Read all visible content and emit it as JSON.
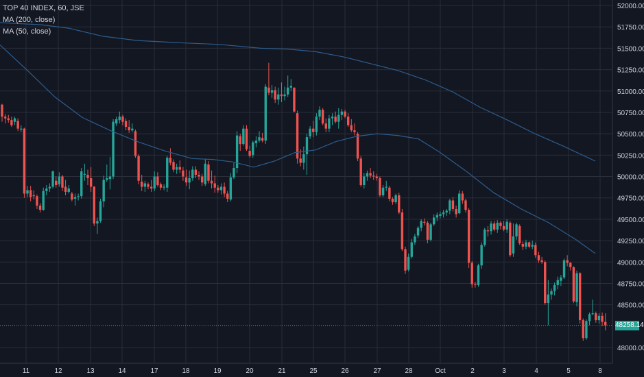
{
  "chart_data": {
    "type": "candlestick",
    "legend": [
      "TOP 40 INDEX, 60, JSE",
      "MA (200, close)",
      "MA (50, close)"
    ],
    "x_ticks": [
      "11",
      "12",
      "13",
      "14",
      "17",
      "18",
      "19",
      "20",
      "21",
      "25",
      "26",
      "27",
      "28",
      "Oct",
      "2",
      "3",
      "4",
      "5",
      "8"
    ],
    "y_ticks": [
      "52000.00",
      "51750.00",
      "51500.00",
      "51250.00",
      "51000.00",
      "50750.00",
      "50500.00",
      "50250.00",
      "50000.00",
      "49750.00",
      "49500.00",
      "49250.00",
      "49000.00",
      "48750.00",
      "48500.00",
      "48000.00"
    ],
    "ylim": [
      47970,
      52010
    ],
    "last_price": 48258.14,
    "last_price_label": "48258.14",
    "colors": {
      "background": "#131722",
      "grid": "#2a2e39",
      "up": "#26a69a",
      "down": "#ef5350",
      "ma": "#2d5d8e",
      "price_line": "#26a69a",
      "text": "#d1d4dc"
    },
    "candles": [
      [
        50840,
        50850,
        50640,
        50700
      ],
      [
        50700,
        50730,
        50620,
        50680
      ],
      [
        50680,
        50720,
        50630,
        50660
      ],
      [
        50660,
        50700,
        50580,
        50600
      ],
      [
        50640,
        50700,
        50600,
        50680
      ],
      [
        50650,
        50680,
        50530,
        50560
      ],
      [
        50550,
        50600,
        50520,
        50560
      ],
      [
        50560,
        50570,
        49750,
        49800
      ],
      [
        49800,
        49890,
        49760,
        49840
      ],
      [
        49840,
        49890,
        49710,
        49760
      ],
      [
        49780,
        49840,
        49730,
        49770
      ],
      [
        49770,
        49790,
        49620,
        49660
      ],
      [
        49660,
        49690,
        49580,
        49610
      ],
      [
        49610,
        49870,
        49600,
        49830
      ],
      [
        49830,
        49900,
        49780,
        49860
      ],
      [
        49860,
        49920,
        49820,
        49880
      ],
      [
        49880,
        50070,
        49860,
        50060
      ],
      [
        49950,
        50000,
        49870,
        49900
      ],
      [
        49910,
        50050,
        49880,
        50000
      ],
      [
        50000,
        50020,
        49830,
        49870
      ],
      [
        49880,
        49960,
        49780,
        49820
      ],
      [
        49820,
        49900,
        49800,
        49860
      ],
      [
        49800,
        49820,
        49710,
        49730
      ],
      [
        49740,
        49800,
        49660,
        49760
      ],
      [
        49770,
        49800,
        49720,
        49770
      ],
      [
        49770,
        50100,
        49740,
        50060
      ],
      [
        50020,
        50150,
        49950,
        50030
      ],
      [
        50020,
        50080,
        49900,
        49980
      ],
      [
        49980,
        50110,
        49820,
        49880
      ],
      [
        49880,
        49890,
        49420,
        49450
      ],
      [
        49450,
        49520,
        49330,
        49480
      ],
      [
        49480,
        49740,
        49460,
        49710
      ],
      [
        49710,
        50010,
        49640,
        49960
      ],
      [
        49960,
        50140,
        49940,
        49980
      ],
      [
        49970,
        50230,
        49850,
        50000
      ],
      [
        50000,
        50670,
        49970,
        50640
      ],
      [
        50620,
        50700,
        50590,
        50670
      ],
      [
        50660,
        50760,
        50620,
        50700
      ],
      [
        50700,
        50720,
        50600,
        50640
      ],
      [
        50650,
        50680,
        50540,
        50580
      ],
      [
        50580,
        50660,
        50510,
        50540
      ],
      [
        50540,
        50620,
        50520,
        50560
      ],
      [
        50530,
        50550,
        50220,
        50240
      ],
      [
        50240,
        50260,
        49910,
        49950
      ],
      [
        49940,
        50020,
        49830,
        49880
      ],
      [
        49880,
        49950,
        49820,
        49920
      ],
      [
        49910,
        49930,
        49850,
        49880
      ],
      [
        49880,
        49960,
        49820,
        49860
      ],
      [
        49860,
        50060,
        49830,
        50000
      ],
      [
        50000,
        50050,
        49880,
        49900
      ],
      [
        49910,
        49930,
        49840,
        49870
      ],
      [
        49870,
        49910,
        49840,
        49880
      ],
      [
        49870,
        50240,
        49820,
        50220
      ],
      [
        50220,
        50330,
        50130,
        50160
      ],
      [
        50170,
        50200,
        50050,
        50080
      ],
      [
        50080,
        50150,
        50030,
        50110
      ],
      [
        50110,
        50190,
        50040,
        50080
      ],
      [
        50070,
        50110,
        49950,
        50000
      ],
      [
        49990,
        50080,
        49890,
        49930
      ],
      [
        49930,
        50070,
        49850,
        49980
      ],
      [
        49980,
        50120,
        49950,
        50080
      ],
      [
        50080,
        50120,
        49980,
        50020
      ],
      [
        50020,
        50060,
        49960,
        50000
      ],
      [
        50000,
        50030,
        49890,
        49930
      ],
      [
        49910,
        50200,
        49890,
        50150
      ],
      [
        50140,
        50180,
        49920,
        49950
      ],
      [
        49950,
        50070,
        49860,
        49920
      ],
      [
        49920,
        50010,
        49810,
        49870
      ],
      [
        49870,
        49900,
        49810,
        49840
      ],
      [
        49840,
        49920,
        49790,
        49880
      ],
      [
        49880,
        49930,
        49760,
        49800
      ],
      [
        49800,
        49830,
        49700,
        49740
      ],
      [
        49730,
        50040,
        49710,
        49990
      ],
      [
        49990,
        50160,
        49970,
        50100
      ],
      [
        50100,
        50530,
        50040,
        50480
      ],
      [
        50470,
        50500,
        50300,
        50380
      ],
      [
        50380,
        50600,
        50360,
        50560
      ],
      [
        50560,
        50600,
        50300,
        50320
      ],
      [
        50300,
        50360,
        50220,
        50240
      ],
      [
        50250,
        50420,
        50220,
        50400
      ],
      [
        50390,
        50470,
        50340,
        50420
      ],
      [
        50420,
        50530,
        50400,
        50460
      ],
      [
        50450,
        50510,
        50400,
        50420
      ],
      [
        50420,
        51080,
        50380,
        51050
      ],
      [
        51040,
        51330,
        50950,
        50980
      ],
      [
        50980,
        51070,
        50920,
        51010
      ],
      [
        51010,
        51050,
        50860,
        50900
      ],
      [
        50900,
        51040,
        50840,
        50960
      ],
      [
        50960,
        51100,
        50870,
        50940
      ],
      [
        50940,
        51050,
        50890,
        50960
      ],
      [
        50960,
        51180,
        50930,
        51040
      ],
      [
        51040,
        51140,
        51000,
        51060
      ],
      [
        51040,
        51040,
        50750,
        50760
      ],
      [
        50740,
        50770,
        50150,
        50210
      ],
      [
        50210,
        50320,
        50120,
        50160
      ],
      [
        50160,
        50350,
        50080,
        50260
      ],
      [
        50260,
        50500,
        50020,
        50460
      ],
      [
        50470,
        50590,
        50440,
        50560
      ],
      [
        50560,
        50650,
        50460,
        50520
      ],
      [
        50520,
        50740,
        50480,
        50700
      ],
      [
        50700,
        50820,
        50660,
        50780
      ],
      [
        50780,
        50800,
        50600,
        50620
      ],
      [
        50620,
        50680,
        50520,
        50560
      ],
      [
        50560,
        50720,
        50520,
        50680
      ],
      [
        50680,
        50740,
        50600,
        50700
      ],
      [
        50700,
        50760,
        50620,
        50640
      ],
      [
        50640,
        50800,
        50560,
        50720
      ],
      [
        50720,
        50790,
        50660,
        50760
      ],
      [
        50760,
        50780,
        50680,
        50700
      ],
      [
        50700,
        50740,
        50580,
        50600
      ],
      [
        50600,
        50670,
        50520,
        50540
      ],
      [
        50540,
        50620,
        50480,
        50520
      ],
      [
        50500,
        50520,
        50180,
        50210
      ],
      [
        50210,
        50240,
        49880,
        49900
      ],
      [
        49900,
        50040,
        49860,
        50000
      ],
      [
        50000,
        50070,
        49950,
        50040
      ],
      [
        50040,
        50100,
        49980,
        50010
      ],
      [
        50010,
        50060,
        49960,
        50000
      ],
      [
        50000,
        50030,
        49950,
        49980
      ],
      [
        49980,
        50000,
        49760,
        49780
      ],
      [
        49780,
        49900,
        49760,
        49870
      ],
      [
        49870,
        49950,
        49830,
        49880
      ],
      [
        49870,
        49890,
        49710,
        49740
      ],
      [
        49740,
        49760,
        49670,
        49700
      ],
      [
        49700,
        49800,
        49680,
        49780
      ],
      [
        49780,
        49810,
        49560,
        49580
      ],
      [
        49580,
        49620,
        49130,
        49150
      ],
      [
        49150,
        49180,
        48860,
        48900
      ],
      [
        48910,
        49100,
        48890,
        49060
      ],
      [
        49060,
        49270,
        49040,
        49230
      ],
      [
        49230,
        49330,
        49200,
        49300
      ],
      [
        49310,
        49420,
        49280,
        49400
      ],
      [
        49400,
        49500,
        49360,
        49480
      ],
      [
        49470,
        49510,
        49430,
        49460
      ],
      [
        49460,
        49480,
        49220,
        49260
      ],
      [
        49260,
        49460,
        49240,
        49440
      ],
      [
        49440,
        49560,
        49420,
        49520
      ],
      [
        49520,
        49580,
        49480,
        49550
      ],
      [
        49540,
        49590,
        49510,
        49560
      ],
      [
        49560,
        49610,
        49520,
        49580
      ],
      [
        49580,
        49620,
        49540,
        49600
      ],
      [
        49600,
        49740,
        49560,
        49720
      ],
      [
        49720,
        49760,
        49590,
        49620
      ],
      [
        49620,
        49660,
        49520,
        49560
      ],
      [
        49570,
        49840,
        49560,
        49800
      ],
      [
        49800,
        49830,
        49680,
        49720
      ],
      [
        49720,
        49740,
        49580,
        49610
      ],
      [
        49610,
        49630,
        48930,
        48990
      ],
      [
        48990,
        49010,
        48700,
        48740
      ],
      [
        48740,
        48770,
        48700,
        48730
      ],
      [
        48730,
        48980,
        48710,
        48960
      ],
      [
        48960,
        49230,
        48920,
        49200
      ],
      [
        49200,
        49400,
        49180,
        49380
      ],
      [
        49370,
        49420,
        49300,
        49360
      ],
      [
        49360,
        49480,
        49320,
        49450
      ],
      [
        49450,
        49480,
        49360,
        49380
      ],
      [
        49380,
        49490,
        49340,
        49460
      ],
      [
        49460,
        49480,
        49380,
        49420
      ],
      [
        49420,
        49480,
        49360,
        49380
      ],
      [
        49380,
        49500,
        49340,
        49470
      ],
      [
        49460,
        49480,
        49060,
        49080
      ],
      [
        49100,
        49450,
        49060,
        49300
      ],
      [
        49300,
        49460,
        49260,
        49440
      ],
      [
        49420,
        49440,
        49200,
        49220
      ],
      [
        49210,
        49240,
        49140,
        49180
      ],
      [
        49180,
        49260,
        49150,
        49230
      ],
      [
        49230,
        49240,
        49160,
        49180
      ],
      [
        49180,
        49250,
        49150,
        49200
      ],
      [
        49200,
        49230,
        49050,
        49080
      ],
      [
        49080,
        49120,
        48990,
        49020
      ],
      [
        49020,
        49060,
        48980,
        49000
      ],
      [
        49000,
        49020,
        48500,
        48520
      ],
      [
        48520,
        48790,
        48260,
        48620
      ],
      [
        48620,
        48690,
        48560,
        48660
      ],
      [
        48660,
        48760,
        48610,
        48730
      ],
      [
        48730,
        48830,
        48680,
        48790
      ],
      [
        48780,
        48850,
        48720,
        48820
      ],
      [
        48820,
        49040,
        48800,
        49020
      ],
      [
        49020,
        49080,
        48950,
        48990
      ],
      [
        48990,
        49000,
        48900,
        48940
      ],
      [
        48940,
        48950,
        48520,
        48540
      ],
      [
        48530,
        48900,
        48480,
        48870
      ],
      [
        48870,
        48880,
        48280,
        48320
      ],
      [
        48320,
        48340,
        48080,
        48110
      ],
      [
        48110,
        48330,
        48090,
        48310
      ],
      [
        48310,
        48410,
        48260,
        48390
      ],
      [
        48390,
        48560,
        48380,
        48400
      ],
      [
        48400,
        48420,
        48290,
        48320
      ],
      [
        48320,
        48400,
        48280,
        48370
      ],
      [
        48370,
        48410,
        48250,
        48300
      ],
      [
        48300,
        48400,
        48200,
        48258
      ]
    ],
    "ma200": [
      [
        0,
        51800
      ],
      [
        60,
        51775
      ],
      [
        100,
        51735
      ],
      [
        150,
        51640
      ],
      [
        200,
        51590
      ],
      [
        260,
        51565
      ],
      [
        320,
        51545
      ],
      [
        380,
        51500
      ],
      [
        420,
        51490
      ],
      [
        460,
        51460
      ],
      [
        500,
        51400
      ],
      [
        540,
        51320
      ],
      [
        580,
        51240
      ],
      [
        620,
        51130
      ],
      [
        660,
        50990
      ],
      [
        700,
        50810
      ],
      [
        740,
        50660
      ],
      [
        780,
        50500
      ],
      [
        820,
        50360
      ],
      [
        868,
        50180
      ]
    ],
    "ma50": [
      [
        0,
        51540
      ],
      [
        40,
        51240
      ],
      [
        80,
        50930
      ],
      [
        120,
        50690
      ],
      [
        160,
        50540
      ],
      [
        200,
        50410
      ],
      [
        240,
        50300
      ],
      [
        280,
        50210
      ],
      [
        310,
        50200
      ],
      [
        340,
        50170
      ],
      [
        370,
        50110
      ],
      [
        400,
        50180
      ],
      [
        430,
        50280
      ],
      [
        460,
        50310
      ],
      [
        490,
        50410
      ],
      [
        520,
        50470
      ],
      [
        550,
        50500
      ],
      [
        580,
        50480
      ],
      [
        610,
        50440
      ],
      [
        640,
        50290
      ],
      [
        680,
        50060
      ],
      [
        720,
        49810
      ],
      [
        760,
        49620
      ],
      [
        800,
        49460
      ],
      [
        840,
        49260
      ],
      [
        868,
        49100
      ]
    ]
  }
}
